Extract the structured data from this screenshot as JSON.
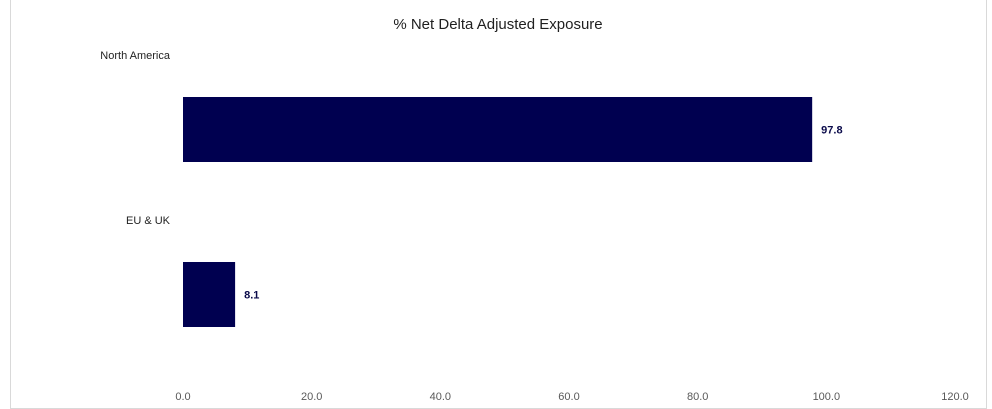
{
  "chart_data": {
    "type": "bar",
    "orientation": "horizontal",
    "title": "% Net Delta Adjusted Exposure",
    "categories": [
      "North America",
      "EU & UK"
    ],
    "values": [
      97.8,
      8.1
    ],
    "data_labels": [
      "97.8",
      "8.1"
    ],
    "xlim": [
      0,
      120
    ],
    "xticks": [
      "0.0",
      "20.0",
      "40.0",
      "60.0",
      "80.0",
      "100.0",
      "120.0"
    ],
    "grid": false,
    "legend": "none",
    "bar_color": "#000050"
  }
}
